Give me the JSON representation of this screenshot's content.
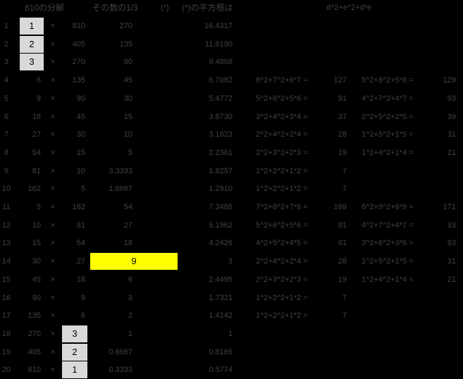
{
  "header": {
    "decomposition": "810の分解",
    "one_third": "その数の1/3",
    "star": "(*)",
    "sqrt_label": "(*)の平方根は",
    "formula": "d^2+e^2+d*e"
  },
  "times_symbol": "×",
  "colors": {
    "background": "#000000",
    "text": "#43413b",
    "highlight_gray": "#d9d9d9",
    "highlight_yellow": "#ffff00",
    "highlight_text": "#000000"
  },
  "rows": [
    {
      "n": "1",
      "a": "1",
      "b": "810",
      "third": "270",
      "sqrt": "16.4317",
      "hl": "a"
    },
    {
      "n": "2",
      "a": "2",
      "b": "405",
      "third": "135",
      "sqrt": "11.6190",
      "hl": "a"
    },
    {
      "n": "3",
      "a": "3",
      "b": "270",
      "third": "90",
      "sqrt": "9.4868",
      "hl": "a"
    },
    {
      "n": "4",
      "a": "6",
      "b": "135",
      "third": "45",
      "sqrt": "6.7082",
      "expr1": "6^2+7^2+6*7 =",
      "res1": "127",
      "expr2": "5^2+8^2+5*8 =",
      "res2": "129"
    },
    {
      "n": "5",
      "a": "9",
      "b": "90",
      "third": "30",
      "sqrt": "5.4772",
      "expr1": "5^2+6^2+5*6 =",
      "res1": "91",
      "expr2": "4^2+7^2+4*7 =",
      "res2": "93"
    },
    {
      "n": "6",
      "a": "18",
      "b": "45",
      "third": "15",
      "sqrt": "3.8730",
      "expr1": "3^2+4^2+3*4 =",
      "res1": "37",
      "expr2": "2^2+5^2+2*5 =",
      "res2": "39"
    },
    {
      "n": "7",
      "a": "27",
      "b": "30",
      "third": "10",
      "sqrt": "3.1623",
      "expr1": "2^2+4^2+2*4 =",
      "res1": "28",
      "expr2": "1^2+5^2+1*5 =",
      "res2": "31"
    },
    {
      "n": "8",
      "a": "54",
      "b": "15",
      "third": "5",
      "sqrt": "2.2361",
      "expr1": "2^2+3^2+2*3 =",
      "res1": "19",
      "expr2": "1^2+4^2+1*4 =",
      "res2": "21"
    },
    {
      "n": "9",
      "a": "81",
      "b": "10",
      "third": "3.3333",
      "sqrt": "1.8257",
      "expr1": "1^2+2^2+1*2 =",
      "res1": "7"
    },
    {
      "n": "10",
      "a": "162",
      "b": "5",
      "third": "1.6667",
      "sqrt": "1.2910",
      "expr1": "1^2+2^2+1*2 =",
      "res1": "7"
    },
    {
      "n": "11",
      "a": "5",
      "b": "162",
      "third": "54",
      "sqrt": "7.3485",
      "expr1": "7^2+8^2+7*8 =",
      "res1": "169",
      "expr2": "6^2+9^2+6*9 =",
      "res2": "171"
    },
    {
      "n": "12",
      "a": "10",
      "b": "81",
      "third": "27",
      "sqrt": "5.1962",
      "expr1": "5^2+6^2+5*6 =",
      "res1": "91",
      "expr2": "4^2+7^2+4*7 =",
      "res2": "93"
    },
    {
      "n": "13",
      "a": "15",
      "b": "54",
      "third": "18",
      "sqrt": "4.2426",
      "expr1": "4^2+5^2+4*5 =",
      "res1": "61",
      "expr2": "3^2+6^2+3*6 =",
      "res2": "63"
    },
    {
      "n": "14",
      "a": "30",
      "b": "27",
      "third": "9",
      "sqrt": "3",
      "hl": "third",
      "expr1": "2^2+4^2+2*4 =",
      "res1": "28",
      "expr2": "1^2+5^2+1*5 =",
      "res2": "31"
    },
    {
      "n": "15",
      "a": "45",
      "b": "18",
      "third": "6",
      "sqrt": "2.4495",
      "expr1": "2^2+3^2+2*3 =",
      "res1": "19",
      "expr2": "1^2+4^2+1*4 =",
      "res2": "21"
    },
    {
      "n": "16",
      "a": "90",
      "b": "9",
      "third": "3",
      "sqrt": "1.7321",
      "expr1": "1^2+2^2+1*2 =",
      "res1": "7"
    },
    {
      "n": "17",
      "a": "135",
      "b": "6",
      "third": "2",
      "sqrt": "1.4142",
      "expr1": "1^2+2^2+1*2 =",
      "res1": "7"
    },
    {
      "n": "18",
      "a": "270",
      "b": "3",
      "third": "1",
      "sqrt": "1",
      "hl": "b"
    },
    {
      "n": "19",
      "a": "405",
      "b": "2",
      "third": "0.6667",
      "sqrt": "0.8165",
      "hl": "b"
    },
    {
      "n": "20",
      "a": "810",
      "b": "1",
      "third": "0.3333",
      "sqrt": "0.5774",
      "hl": "b"
    }
  ]
}
